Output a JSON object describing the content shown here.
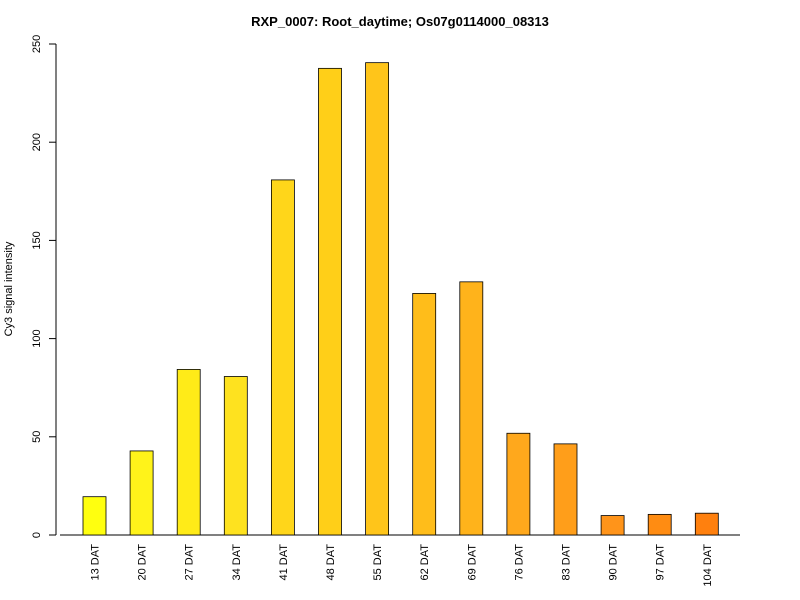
{
  "chart_data": {
    "type": "bar",
    "title": "RXP_0007: Root_daytime; Os07g0114000_08313",
    "xlabel": "",
    "ylabel": "Cy3 signal intensity",
    "ylim": [
      0,
      250
    ],
    "yticks": [
      0,
      50,
      100,
      150,
      200,
      250
    ],
    "categories": [
      "13 DAT",
      "20 DAT",
      "27 DAT",
      "34 DAT",
      "41 DAT",
      "48 DAT",
      "55 DAT",
      "62 DAT",
      "69 DAT",
      "76 DAT",
      "83 DAT",
      "90 DAT",
      "97 DAT",
      "104 DAT"
    ],
    "values": [
      19.5,
      42.8,
      84.3,
      80.7,
      180.8,
      237.6,
      240.5,
      123.0,
      128.9,
      51.8,
      46.4,
      9.9,
      10.5,
      11.1
    ],
    "colors": [
      "#FFFF0F",
      "#FFF31A",
      "#FFEB18",
      "#FEE21F",
      "#FFD61A",
      "#FFCF18",
      "#FFC51A",
      "#FFBD1A",
      "#FFB31B",
      "#FFA81C",
      "#FF9E1A",
      "#FF941A",
      "#FF8C12",
      "#FF800E"
    ],
    "grid": false,
    "legend": "none"
  }
}
